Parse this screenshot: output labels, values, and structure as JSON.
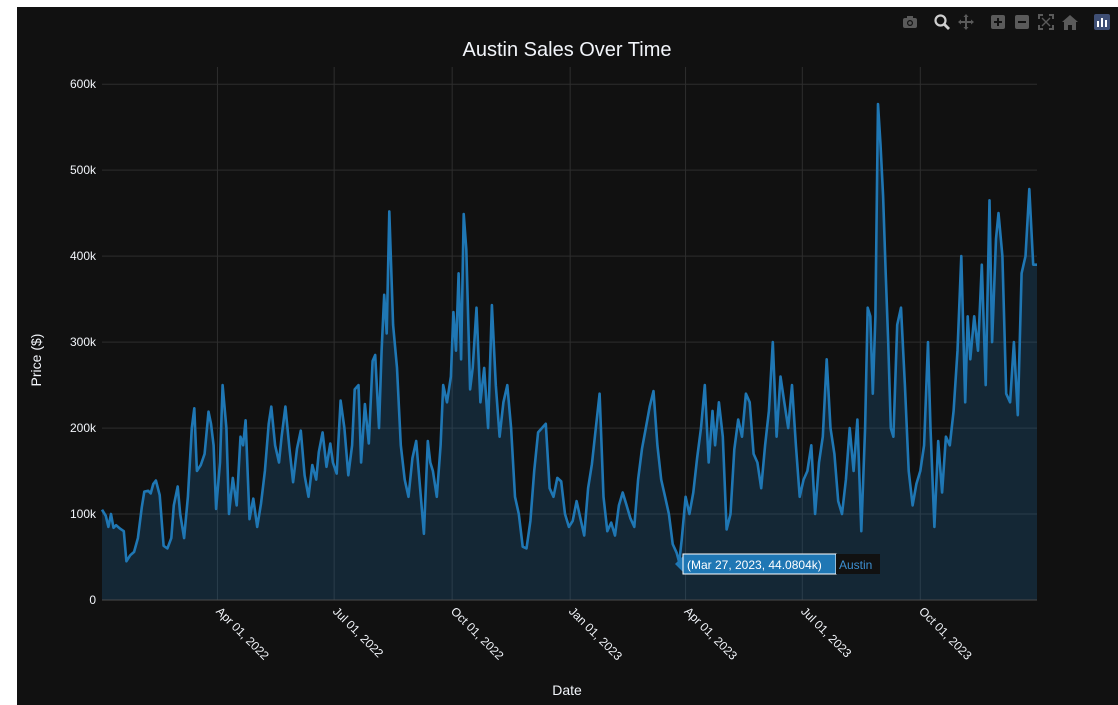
{
  "modebar": {
    "buttons": [
      "camera-icon",
      "zoom-icon",
      "pan-icon",
      "zoom-in-icon",
      "zoom-out-icon",
      "autoscale-icon",
      "home-icon",
      "plotly-logo-icon"
    ]
  },
  "colors": {
    "paper": "#111111",
    "grid": "#2e2e2e",
    "line": "#1f77b4",
    "fill": "rgba(31,119,180,0.22)",
    "text": "#f2f5fa"
  },
  "hover": {
    "label": "(Mar 27, 2023, 44.0804k)",
    "series": "Austin",
    "date": "2023-03-27",
    "value": 44080.4
  },
  "chart_data": {
    "type": "area",
    "title": "Austin Sales Over Time",
    "xlabel": "Date",
    "ylabel": "Price ($)",
    "x_range": [
      "2022-01-01",
      "2023-12-31"
    ],
    "ylim": [
      0,
      620000
    ],
    "y_ticks": [
      0,
      100000,
      200000,
      300000,
      400000,
      500000,
      600000
    ],
    "y_tick_labels": [
      "0",
      "100k",
      "200k",
      "300k",
      "400k",
      "500k",
      "600k"
    ],
    "x_ticks": [
      "2022-04-01",
      "2022-07-01",
      "2022-10-01",
      "2023-01-01",
      "2023-04-01",
      "2023-07-01",
      "2023-10-01"
    ],
    "x_tick_labels": [
      "Apr 01, 2022",
      "Jul 01, 2022",
      "Oct 01, 2022",
      "Jan 01, 2023",
      "Apr 01, 2023",
      "Jul 01, 2023",
      "Oct 01, 2023"
    ],
    "grid": true,
    "series": [
      {
        "name": "Austin",
        "points": [
          [
            "2022-01-01",
            105000
          ],
          [
            "2022-01-04",
            98000
          ],
          [
            "2022-01-06",
            85000
          ],
          [
            "2022-01-08",
            100000
          ],
          [
            "2022-01-10",
            84000
          ],
          [
            "2022-01-12",
            87000
          ],
          [
            "2022-01-15",
            83000
          ],
          [
            "2022-01-18",
            80000
          ],
          [
            "2022-01-20",
            45000
          ],
          [
            "2022-01-23",
            52000
          ],
          [
            "2022-01-26",
            56000
          ],
          [
            "2022-01-29",
            72000
          ],
          [
            "2022-02-01",
            108000
          ],
          [
            "2022-02-03",
            126000
          ],
          [
            "2022-02-06",
            127000
          ],
          [
            "2022-02-08",
            124000
          ],
          [
            "2022-02-10",
            135000
          ],
          [
            "2022-02-12",
            139000
          ],
          [
            "2022-02-15",
            122000
          ],
          [
            "2022-02-18",
            63000
          ],
          [
            "2022-02-21",
            60000
          ],
          [
            "2022-02-24",
            72000
          ],
          [
            "2022-02-26",
            110000
          ],
          [
            "2022-03-01",
            132000
          ],
          [
            "2022-03-03",
            100000
          ],
          [
            "2022-03-06",
            72000
          ],
          [
            "2022-03-09",
            120000
          ],
          [
            "2022-03-12",
            200000
          ],
          [
            "2022-03-14",
            223000
          ],
          [
            "2022-03-16",
            150000
          ],
          [
            "2022-03-19",
            157000
          ],
          [
            "2022-03-22",
            170000
          ],
          [
            "2022-03-25",
            219000
          ],
          [
            "2022-03-27",
            205000
          ],
          [
            "2022-03-29",
            180000
          ],
          [
            "2022-03-31",
            106000
          ],
          [
            "2022-04-03",
            160000
          ],
          [
            "2022-04-05",
            250000
          ],
          [
            "2022-04-08",
            200000
          ],
          [
            "2022-04-10",
            100000
          ],
          [
            "2022-04-13",
            142000
          ],
          [
            "2022-04-16",
            110000
          ],
          [
            "2022-04-19",
            190000
          ],
          [
            "2022-04-21",
            180000
          ],
          [
            "2022-04-23",
            209000
          ],
          [
            "2022-04-26",
            94000
          ],
          [
            "2022-04-29",
            118000
          ],
          [
            "2022-05-02",
            85000
          ],
          [
            "2022-05-05",
            112000
          ],
          [
            "2022-05-08",
            150000
          ],
          [
            "2022-05-11",
            205000
          ],
          [
            "2022-05-13",
            225000
          ],
          [
            "2022-05-16",
            180000
          ],
          [
            "2022-05-19",
            160000
          ],
          [
            "2022-05-21",
            190000
          ],
          [
            "2022-05-24",
            225000
          ],
          [
            "2022-05-27",
            178000
          ],
          [
            "2022-05-30",
            137000
          ],
          [
            "2022-06-02",
            176000
          ],
          [
            "2022-06-05",
            197000
          ],
          [
            "2022-06-08",
            145000
          ],
          [
            "2022-06-11",
            120000
          ],
          [
            "2022-06-14",
            157000
          ],
          [
            "2022-06-17",
            140000
          ],
          [
            "2022-06-19",
            172000
          ],
          [
            "2022-06-22",
            195000
          ],
          [
            "2022-06-25",
            155000
          ],
          [
            "2022-06-28",
            182000
          ],
          [
            "2022-06-30",
            160000
          ],
          [
            "2022-07-03",
            147000
          ],
          [
            "2022-07-06",
            232000
          ],
          [
            "2022-07-09",
            200000
          ],
          [
            "2022-07-12",
            145000
          ],
          [
            "2022-07-15",
            180000
          ],
          [
            "2022-07-17",
            245000
          ],
          [
            "2022-07-20",
            250000
          ],
          [
            "2022-07-22",
            160000
          ],
          [
            "2022-07-25",
            228000
          ],
          [
            "2022-07-28",
            182000
          ],
          [
            "2022-07-31",
            278000
          ],
          [
            "2022-08-02",
            285000
          ],
          [
            "2022-08-05",
            200000
          ],
          [
            "2022-08-07",
            290000
          ],
          [
            "2022-08-09",
            355000
          ],
          [
            "2022-08-11",
            310000
          ],
          [
            "2022-08-13",
            452000
          ],
          [
            "2022-08-16",
            320000
          ],
          [
            "2022-08-19",
            270000
          ],
          [
            "2022-08-22",
            180000
          ],
          [
            "2022-08-25",
            140000
          ],
          [
            "2022-08-28",
            120000
          ],
          [
            "2022-08-31",
            165000
          ],
          [
            "2022-09-03",
            185000
          ],
          [
            "2022-09-06",
            130000
          ],
          [
            "2022-09-09",
            77000
          ],
          [
            "2022-09-12",
            185000
          ],
          [
            "2022-09-14",
            160000
          ],
          [
            "2022-09-16",
            150000
          ],
          [
            "2022-09-19",
            120000
          ],
          [
            "2022-09-22",
            180000
          ],
          [
            "2022-09-24",
            250000
          ],
          [
            "2022-09-27",
            230000
          ],
          [
            "2022-09-30",
            260000
          ],
          [
            "2022-10-02",
            335000
          ],
          [
            "2022-10-04",
            290000
          ],
          [
            "2022-10-06",
            380000
          ],
          [
            "2022-10-08",
            280000
          ],
          [
            "2022-10-10",
            449000
          ],
          [
            "2022-10-12",
            408000
          ],
          [
            "2022-10-15",
            245000
          ],
          [
            "2022-10-17",
            270000
          ],
          [
            "2022-10-20",
            340000
          ],
          [
            "2022-10-23",
            230000
          ],
          [
            "2022-10-26",
            270000
          ],
          [
            "2022-10-29",
            200000
          ],
          [
            "2022-11-01",
            343000
          ],
          [
            "2022-11-04",
            250000
          ],
          [
            "2022-11-07",
            190000
          ],
          [
            "2022-11-10",
            230000
          ],
          [
            "2022-11-13",
            250000
          ],
          [
            "2022-11-16",
            200000
          ],
          [
            "2022-11-19",
            120000
          ],
          [
            "2022-11-22",
            100000
          ],
          [
            "2022-11-25",
            62000
          ],
          [
            "2022-11-28",
            60000
          ],
          [
            "2022-12-01",
            92000
          ],
          [
            "2022-12-04",
            150000
          ],
          [
            "2022-12-07",
            195000
          ],
          [
            "2022-12-10",
            200000
          ],
          [
            "2022-12-13",
            205000
          ],
          [
            "2022-12-16",
            130000
          ],
          [
            "2022-12-19",
            120000
          ],
          [
            "2022-12-22",
            142000
          ],
          [
            "2022-12-25",
            138000
          ],
          [
            "2022-12-28",
            100000
          ],
          [
            "2022-12-31",
            85000
          ],
          [
            "2023-01-03",
            92000
          ],
          [
            "2023-01-06",
            115000
          ],
          [
            "2023-01-09",
            95000
          ],
          [
            "2023-01-12",
            75000
          ],
          [
            "2023-01-15",
            130000
          ],
          [
            "2023-01-18",
            158000
          ],
          [
            "2023-01-21",
            200000
          ],
          [
            "2023-01-24",
            240000
          ],
          [
            "2023-01-27",
            120000
          ],
          [
            "2023-01-30",
            80000
          ],
          [
            "2023-02-02",
            90000
          ],
          [
            "2023-02-05",
            75000
          ],
          [
            "2023-02-08",
            110000
          ],
          [
            "2023-02-11",
            125000
          ],
          [
            "2023-02-14",
            110000
          ],
          [
            "2023-02-17",
            95000
          ],
          [
            "2023-02-20",
            85000
          ],
          [
            "2023-02-23",
            140000
          ],
          [
            "2023-02-26",
            176000
          ],
          [
            "2023-03-01",
            200000
          ],
          [
            "2023-03-04",
            225000
          ],
          [
            "2023-03-07",
            243000
          ],
          [
            "2023-03-10",
            180000
          ],
          [
            "2023-03-13",
            140000
          ],
          [
            "2023-03-16",
            120000
          ],
          [
            "2023-03-19",
            100000
          ],
          [
            "2023-03-22",
            65000
          ],
          [
            "2023-03-25",
            55000
          ],
          [
            "2023-03-27",
            44080
          ],
          [
            "2023-03-29",
            70000
          ],
          [
            "2023-04-01",
            120000
          ],
          [
            "2023-04-04",
            100000
          ],
          [
            "2023-04-07",
            125000
          ],
          [
            "2023-04-10",
            165000
          ],
          [
            "2023-04-13",
            200000
          ],
          [
            "2023-04-16",
            250000
          ],
          [
            "2023-04-19",
            160000
          ],
          [
            "2023-04-22",
            220000
          ],
          [
            "2023-04-24",
            180000
          ],
          [
            "2023-04-27",
            230000
          ],
          [
            "2023-04-30",
            190000
          ],
          [
            "2023-05-03",
            82000
          ],
          [
            "2023-05-06",
            100000
          ],
          [
            "2023-05-09",
            175000
          ],
          [
            "2023-05-12",
            210000
          ],
          [
            "2023-05-15",
            190000
          ],
          [
            "2023-05-18",
            240000
          ],
          [
            "2023-05-21",
            230000
          ],
          [
            "2023-05-24",
            170000
          ],
          [
            "2023-05-27",
            160000
          ],
          [
            "2023-05-30",
            130000
          ],
          [
            "2023-06-02",
            180000
          ],
          [
            "2023-06-05",
            220000
          ],
          [
            "2023-06-08",
            300000
          ],
          [
            "2023-06-11",
            190000
          ],
          [
            "2023-06-14",
            260000
          ],
          [
            "2023-06-17",
            230000
          ],
          [
            "2023-06-20",
            200000
          ],
          [
            "2023-06-23",
            250000
          ],
          [
            "2023-06-26",
            180000
          ],
          [
            "2023-06-29",
            120000
          ],
          [
            "2023-07-02",
            140000
          ],
          [
            "2023-07-05",
            150000
          ],
          [
            "2023-07-08",
            180000
          ],
          [
            "2023-07-11",
            100000
          ],
          [
            "2023-07-14",
            160000
          ],
          [
            "2023-07-17",
            190000
          ],
          [
            "2023-07-20",
            280000
          ],
          [
            "2023-07-23",
            200000
          ],
          [
            "2023-07-26",
            170000
          ],
          [
            "2023-07-29",
            115000
          ],
          [
            "2023-08-01",
            100000
          ],
          [
            "2023-08-04",
            140000
          ],
          [
            "2023-08-07",
            200000
          ],
          [
            "2023-08-10",
            150000
          ],
          [
            "2023-08-13",
            210000
          ],
          [
            "2023-08-16",
            80000
          ],
          [
            "2023-08-19",
            200000
          ],
          [
            "2023-08-21",
            340000
          ],
          [
            "2023-08-23",
            330000
          ],
          [
            "2023-08-25",
            240000
          ],
          [
            "2023-08-27",
            330000
          ],
          [
            "2023-08-29",
            577000
          ],
          [
            "2023-08-31",
            530000
          ],
          [
            "2023-09-02",
            470000
          ],
          [
            "2023-09-04",
            380000
          ],
          [
            "2023-09-06",
            300000
          ],
          [
            "2023-09-08",
            200000
          ],
          [
            "2023-09-10",
            190000
          ],
          [
            "2023-09-13",
            320000
          ],
          [
            "2023-09-16",
            340000
          ],
          [
            "2023-09-19",
            250000
          ],
          [
            "2023-09-22",
            150000
          ],
          [
            "2023-09-25",
            110000
          ],
          [
            "2023-09-28",
            135000
          ],
          [
            "2023-10-01",
            150000
          ],
          [
            "2023-10-04",
            180000
          ],
          [
            "2023-10-07",
            300000
          ],
          [
            "2023-10-09",
            200000
          ],
          [
            "2023-10-12",
            85000
          ],
          [
            "2023-10-15",
            185000
          ],
          [
            "2023-10-18",
            125000
          ],
          [
            "2023-10-21",
            190000
          ],
          [
            "2023-10-24",
            180000
          ],
          [
            "2023-10-27",
            220000
          ],
          [
            "2023-10-30",
            290000
          ],
          [
            "2023-11-02",
            400000
          ],
          [
            "2023-11-05",
            230000
          ],
          [
            "2023-11-07",
            330000
          ],
          [
            "2023-11-09",
            280000
          ],
          [
            "2023-11-12",
            330000
          ],
          [
            "2023-11-15",
            290000
          ],
          [
            "2023-11-18",
            390000
          ],
          [
            "2023-11-21",
            250000
          ],
          [
            "2023-11-24",
            465000
          ],
          [
            "2023-11-26",
            300000
          ],
          [
            "2023-11-29",
            420000
          ],
          [
            "2023-12-01",
            450000
          ],
          [
            "2023-12-04",
            400000
          ],
          [
            "2023-12-07",
            240000
          ],
          [
            "2023-12-10",
            230000
          ],
          [
            "2023-12-13",
            300000
          ],
          [
            "2023-12-16",
            215000
          ],
          [
            "2023-12-19",
            380000
          ],
          [
            "2023-12-22",
            400000
          ],
          [
            "2023-12-25",
            478000
          ],
          [
            "2023-12-28",
            390000
          ],
          [
            "2023-12-31",
            390000
          ]
        ]
      }
    ]
  }
}
